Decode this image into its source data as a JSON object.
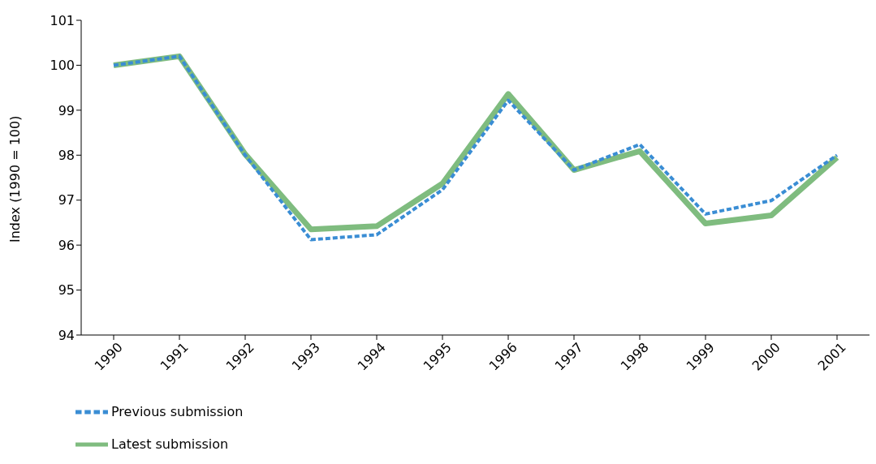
{
  "chart_data": {
    "type": "line",
    "ylabel": "Index (1990 = 100)",
    "categories": [
      "1990",
      "1991",
      "1992",
      "1993",
      "1994",
      "1995",
      "1996",
      "1997",
      "1998",
      "1999",
      "2000",
      "2001"
    ],
    "series": [
      {
        "name": "Previous submission",
        "color": "#3a8dd4",
        "line_style": "dashed",
        "values": [
          100,
          100.2,
          98.0,
          96.12,
          96.23,
          97.23,
          99.22,
          97.67,
          98.24,
          96.69,
          96.99,
          98.0
        ]
      },
      {
        "name": "Latest submission",
        "color": "#7fbc7f",
        "line_style": "solid",
        "values": [
          100,
          100.2,
          98.02,
          96.35,
          96.42,
          97.37,
          99.36,
          97.67,
          98.09,
          96.48,
          96.66,
          97.95
        ]
      }
    ],
    "ylim": [
      94,
      101
    ],
    "yticks": [
      94,
      95,
      96,
      97,
      98,
      99,
      100,
      101
    ],
    "grid": false,
    "legend": "bottom left",
    "marker": "none"
  }
}
